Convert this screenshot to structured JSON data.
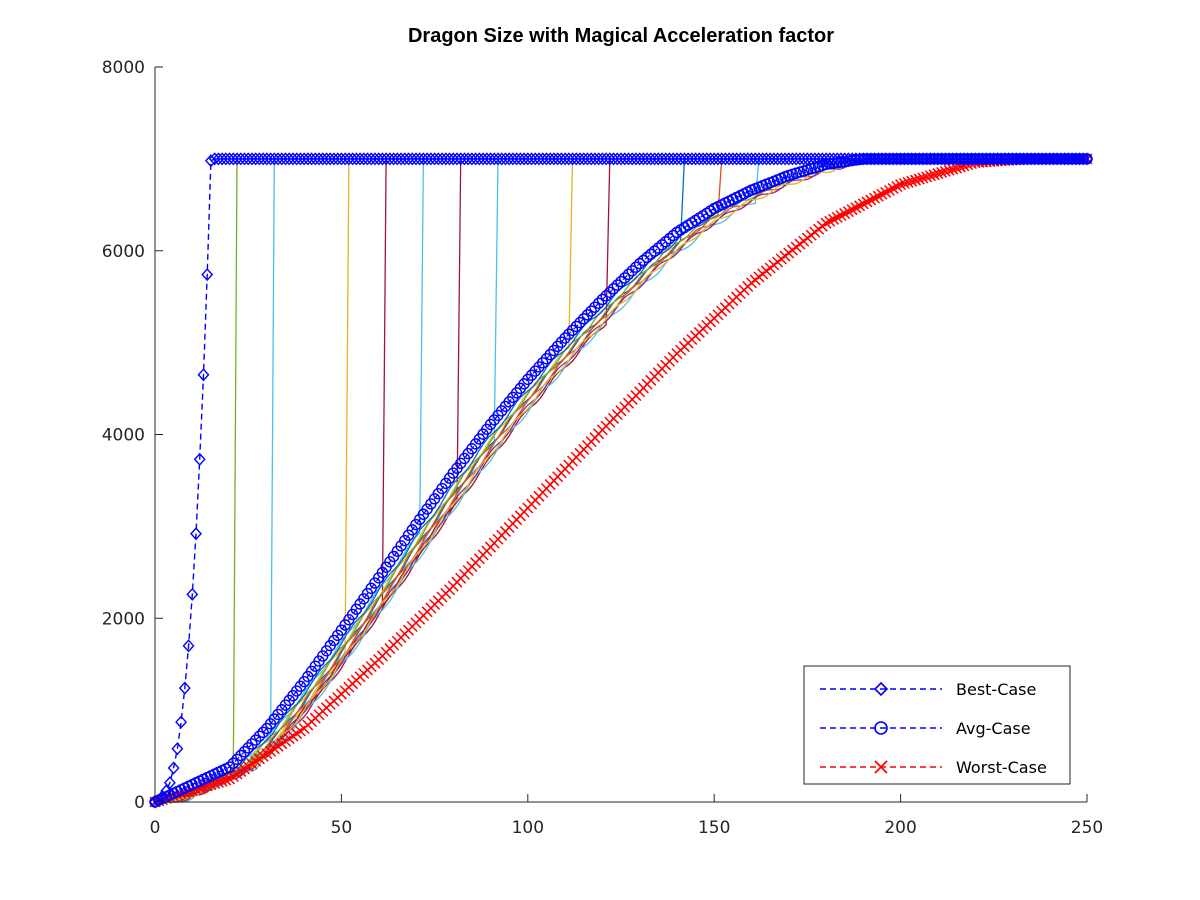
{
  "chart_data": {
    "type": "line",
    "title": "Dragon Size with Magical Acceleration factor",
    "xlabel": "",
    "ylabel": "",
    "xlim": [
      0,
      250
    ],
    "ylim": [
      0,
      8000
    ],
    "xticks": [
      0,
      50,
      100,
      150,
      200,
      250
    ],
    "xtick_labels": [
      "0",
      "50",
      "100",
      "150",
      "200",
      "250"
    ],
    "yticks": [
      0,
      2000,
      4000,
      6000,
      8000
    ],
    "ytick_labels": [
      "0",
      "2000",
      "4000",
      "6000",
      "8000"
    ],
    "grid": false,
    "legend_position": "bottom-right",
    "max_size": 7000,
    "series": [
      {
        "name": "Best-Case",
        "color": "#0000ff",
        "line": "dashed",
        "marker": "diamond",
        "x": [
          0,
          1,
          2,
          3,
          4,
          5,
          6,
          7,
          8,
          9,
          10,
          11,
          12,
          13,
          14,
          15,
          16
        ],
        "y": [
          0,
          20,
          60,
          120,
          210,
          370,
          580,
          870,
          1240,
          1700,
          2260,
          2920,
          3730,
          4650,
          5740,
          6980,
          7000
        ]
      },
      {
        "name": "Avg-Case",
        "color": "#0000ff",
        "line": "dashed",
        "marker": "circle",
        "x": [
          0,
          20,
          30,
          40,
          50,
          60,
          70,
          80,
          90,
          100,
          110,
          120,
          130,
          140,
          150,
          160,
          170,
          180,
          190,
          195
        ],
        "y": [
          0,
          380,
          800,
          1310,
          1870,
          2440,
          3020,
          3580,
          4110,
          4600,
          5050,
          5470,
          5860,
          6200,
          6460,
          6660,
          6820,
          6940,
          7000,
          7000
        ]
      },
      {
        "name": "Worst-Case",
        "color": "#ff0000",
        "line": "dashed",
        "marker": "x",
        "x": [
          0,
          20,
          40,
          60,
          80,
          100,
          120,
          140,
          160,
          180,
          200,
          220,
          235
        ],
        "y": [
          0,
          250,
          800,
          1550,
          2350,
          3200,
          4050,
          4880,
          5650,
          6300,
          6720,
          6960,
          7000
        ]
      },
      {
        "name": "",
        "color": "#77ac30",
        "cutoff": 21
      },
      {
        "name": "",
        "color": "#4dbeee",
        "cutoff": 31
      },
      {
        "name": "",
        "color": "#edb120",
        "cutoff": 51
      },
      {
        "name": "",
        "color": "#a2142f",
        "cutoff": 61
      },
      {
        "name": "",
        "color": "#4dbeee",
        "cutoff": 71
      },
      {
        "name": "",
        "color": "#a2142f",
        "cutoff": 81
      },
      {
        "name": "",
        "color": "#4dbeee",
        "cutoff": 91
      },
      {
        "name": "",
        "color": "#edb120",
        "cutoff": 111
      },
      {
        "name": "",
        "color": "#a2142f",
        "cutoff": 121
      },
      {
        "name": "",
        "color": "#0072bd",
        "cutoff": 141
      },
      {
        "name": "",
        "color": "#d95319",
        "cutoff": 151
      },
      {
        "name": "",
        "color": "#4dbeee",
        "cutoff": 161
      },
      {
        "name": "",
        "color": "#77ac30",
        "cutoff": null
      },
      {
        "name": "",
        "color": "#d95319",
        "cutoff": null
      },
      {
        "name": "",
        "color": "#7e2f8e",
        "cutoff": null
      },
      {
        "name": "",
        "color": "#0072bd",
        "cutoff": null
      },
      {
        "name": "",
        "color": "#edb120",
        "cutoff": null
      }
    ]
  }
}
